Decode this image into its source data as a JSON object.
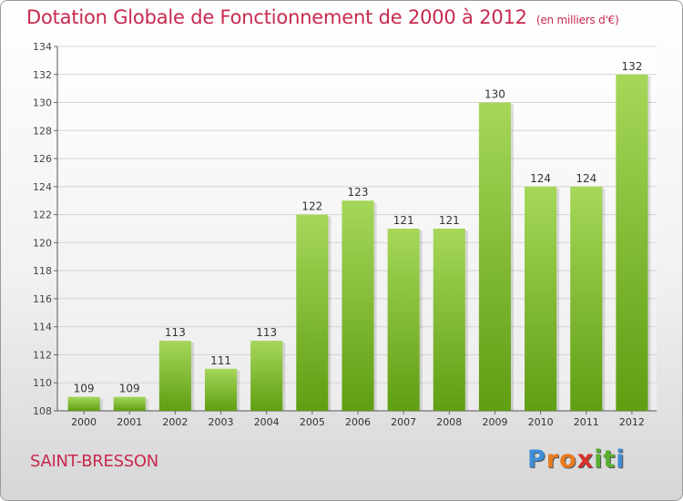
{
  "page": {
    "title": "Dotation Globale de Fonctionnement de 2000 à 2012",
    "unit": "(en milliers d'€)",
    "commune": "SAINT-BRESSON",
    "logo": {
      "text": "Proxiti",
      "letters": [
        "P",
        "r",
        "o",
        "x",
        "i",
        "t",
        "i"
      ],
      "colors": [
        "#3e8fd6",
        "#e97b20",
        "#e97b20",
        "#d6332b",
        "#5aae32",
        "#5aae32",
        "#3e8fd6"
      ]
    }
  },
  "chart_data": {
    "type": "bar",
    "categories": [
      "2000",
      "2001",
      "2002",
      "2003",
      "2004",
      "2005",
      "2006",
      "2007",
      "2008",
      "2009",
      "2010",
      "2011",
      "2012"
    ],
    "values": [
      109,
      109,
      113,
      111,
      113,
      122,
      123,
      121,
      121,
      130,
      124,
      124,
      132
    ],
    "title": "Dotation Globale de Fonctionnement de 2000 à 2012",
    "unit": "(en milliers d'€)",
    "ylim": [
      108,
      134
    ],
    "yticks": [
      108,
      110,
      112,
      114,
      116,
      118,
      120,
      122,
      124,
      126,
      128,
      130,
      132,
      134
    ],
    "grid": true,
    "bar_color_top": "#a6d75a",
    "bar_color_bottom": "#5f9e12",
    "title_color": "#c8294e"
  }
}
